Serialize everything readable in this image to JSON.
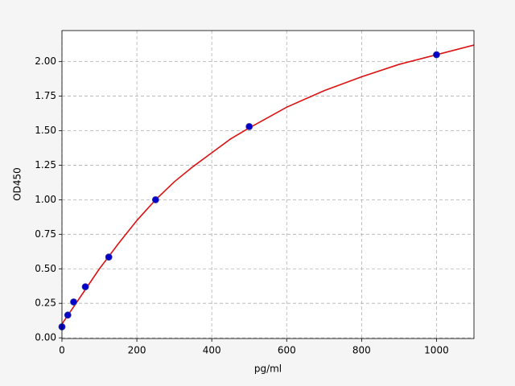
{
  "chart_data": {
    "type": "scatter",
    "x_label": "pg/ml",
    "y_label": "OD450",
    "xlim": [
      0,
      1100
    ],
    "ylim": [
      -0.005,
      2.225
    ],
    "xticks": [
      0,
      200,
      400,
      600,
      800,
      1000
    ],
    "yticks": [
      {
        "value": 0,
        "label": "0.00"
      },
      {
        "value": 0.25,
        "label": "0.25"
      },
      {
        "value": 0.5,
        "label": "0.50"
      },
      {
        "value": 0.75,
        "label": "0.75"
      },
      {
        "value": 1,
        "label": "1.00"
      },
      {
        "value": 1.25,
        "label": "1.25"
      },
      {
        "value": 1.5,
        "label": "1.50"
      },
      {
        "value": 1.75,
        "label": "1.75"
      },
      {
        "value": 2,
        "label": "2.00"
      }
    ],
    "grid": true,
    "series": [
      {
        "type": "scatter",
        "color": "#0000cc",
        "x": [
          0,
          15.6,
          31.25,
          62.5,
          125,
          250,
          500,
          1000
        ],
        "values": [
          0.08,
          0.165,
          0.26,
          0.37,
          0.585,
          1.0,
          1.53,
          2.05
        ]
      },
      {
        "type": "line",
        "color": "#dd1111",
        "x": [
          0,
          50,
          100,
          150,
          200,
          250,
          300,
          350,
          400,
          450,
          500,
          600,
          700,
          800,
          900,
          1000,
          1100
        ],
        "values": [
          0.1,
          0.3,
          0.5,
          0.68,
          0.85,
          1.0,
          1.13,
          1.24,
          1.34,
          1.44,
          1.52,
          1.67,
          1.79,
          1.89,
          1.98,
          2.05,
          2.12
        ]
      }
    ]
  }
}
